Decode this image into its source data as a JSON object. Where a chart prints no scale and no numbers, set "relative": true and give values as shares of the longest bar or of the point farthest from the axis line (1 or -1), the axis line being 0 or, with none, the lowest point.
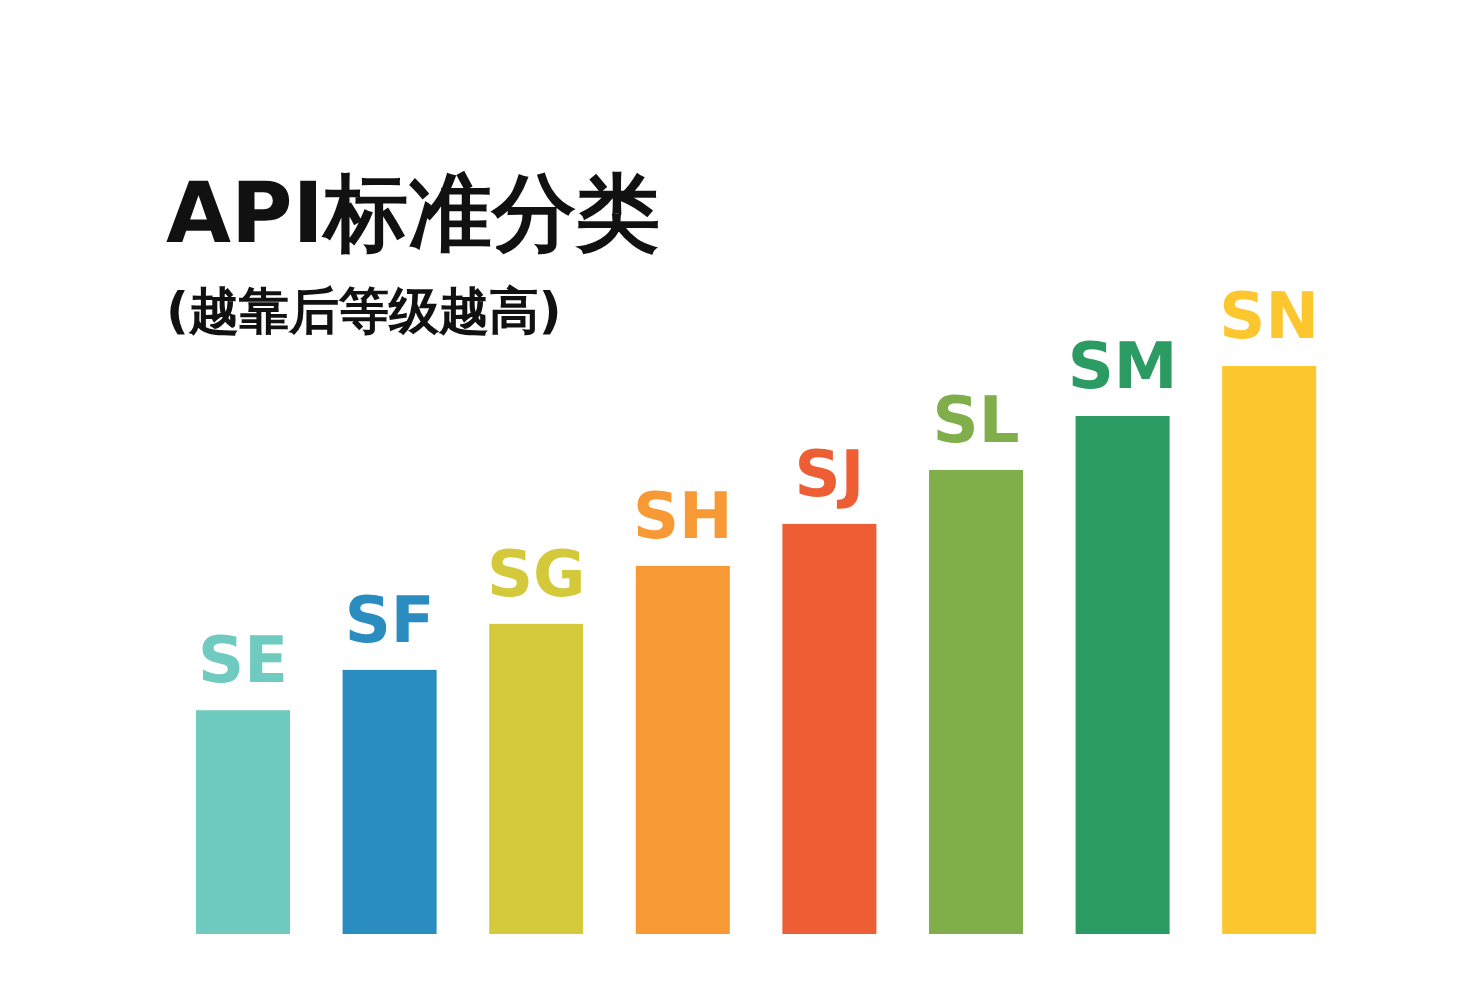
{
  "chart_data": {
    "type": "bar",
    "title": "API标准分类",
    "subtitle": "(越靠后等级越高)",
    "relative": true,
    "categories": [
      "SE",
      "SF",
      "SG",
      "SH",
      "SJ",
      "SL",
      "SM",
      "SN"
    ],
    "values": [
      0.394,
      0.465,
      0.546,
      0.648,
      0.722,
      0.817,
      0.912,
      1
    ],
    "colors": [
      "#6fcbbf",
      "#2a8cbf",
      "#d4c93a",
      "#f79a35",
      "#ee5e34",
      "#7fae4a",
      "#2b9b63",
      "#fcc62e"
    ]
  }
}
